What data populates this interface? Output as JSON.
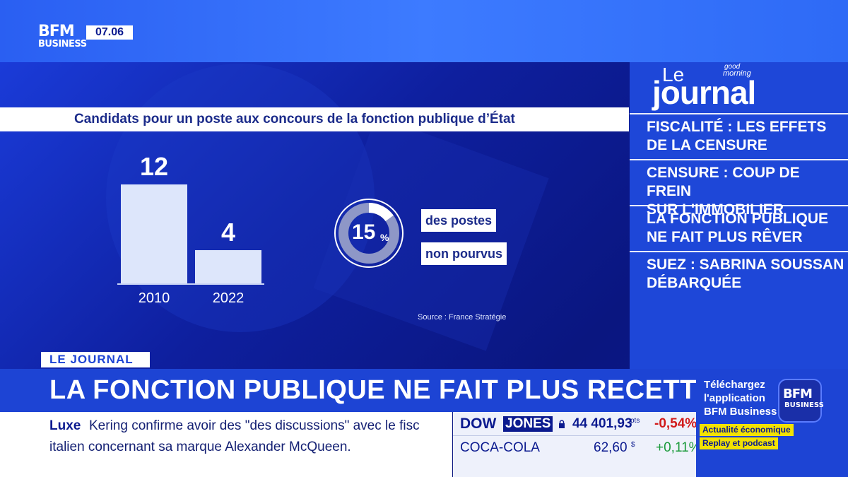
{
  "channel": {
    "logo_top": "BFM",
    "logo_bottom": "BUSINESS",
    "time": "07.06"
  },
  "chart": {
    "title": "Candidats pour un poste aux concours de la fonction publique d’État",
    "source": "Source : France Stratégie",
    "donut_value": "15",
    "donut_unit": "%",
    "donut_label_1": "des postes",
    "donut_label_2": "non pourvus"
  },
  "chart_data": {
    "type": "bar",
    "categories": [
      "2010",
      "2022"
    ],
    "values": [
      12,
      4
    ],
    "title": "Candidats pour un poste aux concours de la fonction publique d’État",
    "ylim": [
      0,
      12
    ],
    "donut": {
      "value": 15,
      "unit": "%",
      "labels": [
        "des postes",
        "non pourvus"
      ]
    }
  },
  "side_panel": {
    "brand_small": "Le",
    "brand_gm_1": "good",
    "brand_gm_2": "morning",
    "brand_big": "journal",
    "items": [
      {
        "line1": "FISCALITÉ : LES EFFETS",
        "line2": "DE LA CENSURE"
      },
      {
        "line1": "CENSURE : COUP DE FREIN",
        "line2": "SUR L'IMMOBILIER"
      },
      {
        "line1": "LA FONCTION PUBLIQUE",
        "line2": "NE FAIT PLUS RÊVER"
      },
      {
        "line1": "SUEZ : SABRINA SOUSSAN",
        "line2": "DÉBARQUÉE"
      }
    ]
  },
  "lower_third": {
    "tag": "LE JOURNAL",
    "headline": "LA FONCTION PUBLIQUE NE FAIT PLUS RECETTE"
  },
  "ticker": {
    "category": "Luxe",
    "line1": "Kering confirme avoir des \"des discussions\" avec le fisc",
    "line2": "italien concernant sa marque Alexander McQueen."
  },
  "market": {
    "index_a": "DOW",
    "index_b": "JONES",
    "index_value": "44 401,93",
    "index_unit": "pts",
    "index_change": "-0,54%",
    "stock_name": "COCA-COLA",
    "stock_value": "62,60",
    "stock_unit": "$",
    "stock_change": "+0,11%",
    "colors": {
      "down": "#d11a1a",
      "up": "#1a9a3a"
    }
  },
  "app_promo": {
    "line1": "Téléchargez",
    "line2": "l'application",
    "line3": "BFM Business",
    "badge_1": "Actualité économique",
    "badge_2": "Replay et podcast",
    "logo_top": "BFM",
    "logo_bottom": "BUSINESS"
  }
}
